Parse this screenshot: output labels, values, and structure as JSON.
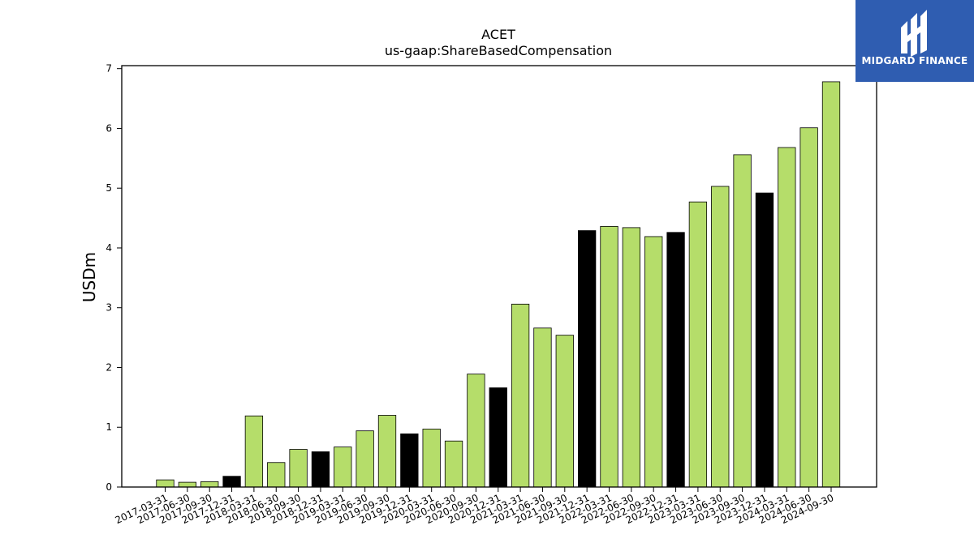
{
  "chart_data": {
    "type": "bar",
    "title": "ACET",
    "subtitle": "us-gaap:ShareBasedCompensation",
    "ylabel": "USDm",
    "xlabel": "",
    "ylim": [
      0,
      7.05
    ],
    "yticks": [
      0,
      1,
      2,
      3,
      4,
      5,
      6,
      7
    ],
    "grid": false,
    "colors": {
      "quarter": "#b5dd6a",
      "year_end": "#000000",
      "edge": "#000000"
    },
    "categories": [
      "2017-03-31",
      "2017-06-30",
      "2017-09-30",
      "2017-12-31",
      "2018-03-31",
      "2018-06-30",
      "2018-09-30",
      "2018-12-31",
      "2019-03-31",
      "2019-06-30",
      "2019-09-30",
      "2019-12-31",
      "2020-03-31",
      "2020-06-30",
      "2020-09-30",
      "2020-12-31",
      "2021-03-31",
      "2021-06-30",
      "2021-09-30",
      "2021-12-31",
      "2022-03-31",
      "2022-06-30",
      "2022-09-30",
      "2022-12-31",
      "2023-03-31",
      "2023-06-30",
      "2023-09-30",
      "2023-12-31",
      "2024-03-31",
      "2024-06-30",
      "2024-09-30"
    ],
    "values": [
      0.12,
      0.08,
      0.09,
      0.18,
      1.19,
      0.41,
      0.63,
      0.59,
      0.67,
      0.94,
      1.2,
      0.89,
      0.97,
      0.77,
      1.89,
      1.66,
      3.06,
      2.66,
      2.54,
      4.29,
      4.36,
      4.34,
      4.19,
      4.26,
      4.77,
      5.03,
      5.56,
      4.92,
      5.68,
      6.01,
      6.78
    ],
    "highlight_year_end": [
      false,
      false,
      false,
      true,
      false,
      false,
      false,
      true,
      false,
      false,
      false,
      true,
      false,
      false,
      false,
      true,
      false,
      false,
      false,
      true,
      false,
      false,
      false,
      true,
      false,
      false,
      false,
      true,
      false,
      false,
      false
    ]
  },
  "logo": {
    "text": "MIDGARD FINANCE"
  }
}
